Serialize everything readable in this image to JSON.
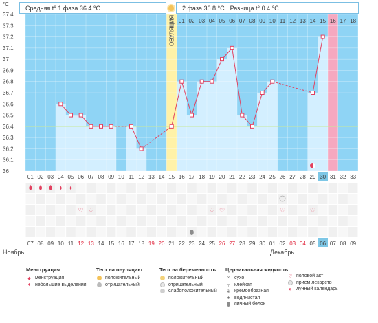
{
  "header": {
    "phase1": "Средняя t° 1 фаза 36.4 °C",
    "phase2": "2 фаза 36.8 °C",
    "diff": "Разница t° 0.4 °C",
    "unit": "°C"
  },
  "ovulation_label": "ОВУЛЯЦИЯ",
  "months": {
    "left": "Ноябрь",
    "right": "Декабрь"
  },
  "chart_data": {
    "type": "line",
    "title": "",
    "ylabel": "°C",
    "ylim": [
      36.0,
      37.4
    ],
    "yticks": [
      "36",
      "36.1",
      "36.2",
      "36.3",
      "36.4",
      "36.5",
      "36.6",
      "36.7",
      "36.8",
      "36.9",
      "37",
      "37.1",
      "37.2",
      "37.3",
      "37.4"
    ],
    "coverline": 36.4,
    "cycle_days": [
      "01",
      "02",
      "03",
      "04",
      "05",
      "06",
      "07",
      "08",
      "09",
      "10",
      "11",
      "12",
      "13",
      "14",
      "15",
      "16",
      "17",
      "18",
      "19",
      "20",
      "21",
      "22",
      "23",
      "24",
      "25",
      "26",
      "27",
      "28",
      "29",
      "30",
      "31",
      "32",
      "33"
    ],
    "phase2_days": [
      "01",
      "02",
      "03",
      "04",
      "05",
      "06",
      "07",
      "08",
      "09",
      "10",
      "11",
      "12",
      "13",
      "14",
      "15",
      "16",
      "17",
      "18"
    ],
    "dates": [
      "07",
      "08",
      "09",
      "10",
      "11",
      "12",
      "13",
      "14",
      "15",
      "16",
      "17",
      "18",
      "19",
      "20",
      "21",
      "22",
      "23",
      "24",
      "25",
      "26",
      "27",
      "28",
      "29",
      "30",
      "01",
      "02",
      "03",
      "04",
      "05",
      "06",
      "07",
      "08",
      "09"
    ],
    "weekend_indices": [
      5,
      6,
      12,
      13,
      19,
      20,
      26,
      27
    ],
    "today_index": 29,
    "ovulation_day": 15,
    "next_cycle_day": 31,
    "temperatures": [
      null,
      null,
      null,
      36.6,
      36.5,
      36.5,
      36.4,
      36.4,
      36.4,
      null,
      36.4,
      36.2,
      null,
      null,
      36.4,
      36.8,
      36.5,
      36.8,
      36.8,
      37.0,
      37.1,
      36.5,
      36.4,
      36.7,
      36.8,
      null,
      null,
      null,
      36.7,
      37.2,
      null,
      null,
      null
    ],
    "menstruation_days": [
      1,
      2,
      3
    ],
    "light_spotting_days": [
      4,
      5
    ],
    "intercourse_days": [
      6,
      7,
      19,
      20,
      26,
      29
    ],
    "pregnancy_test_negative_days": [
      26
    ],
    "fluid_egg_white_days": [
      17
    ],
    "lunar_calendar_day": 29
  },
  "legend": {
    "menstruation": {
      "title": "Менструация",
      "items": [
        "менструация",
        "небольшие выделения"
      ]
    },
    "ovulation_test": {
      "title": "Тест на овуляцию",
      "items": [
        "положительный",
        "отрицательный"
      ]
    },
    "pregnancy_test": {
      "title": "Тест на беременность",
      "items": [
        "положительный",
        "отрицательный",
        "слабоположительный"
      ]
    },
    "cervical_fluid": {
      "title": "Цервикальная жидкость",
      "items": [
        "сухо",
        "клейкая",
        "кремообразная",
        "водянистая",
        "яичный белок"
      ]
    },
    "other": {
      "items": [
        "половой акт",
        "прием лекарств",
        "лунный календарь"
      ]
    }
  },
  "colors": {
    "background": "#8fd4f5",
    "bar": "#d3efff",
    "ovulation": "#fff2a8",
    "next_cycle": "#f6a8c0",
    "line": "#e2405f",
    "coverline": "#c8e89a",
    "weekend": "#e0253c",
    "today": "#7ec7e6"
  }
}
